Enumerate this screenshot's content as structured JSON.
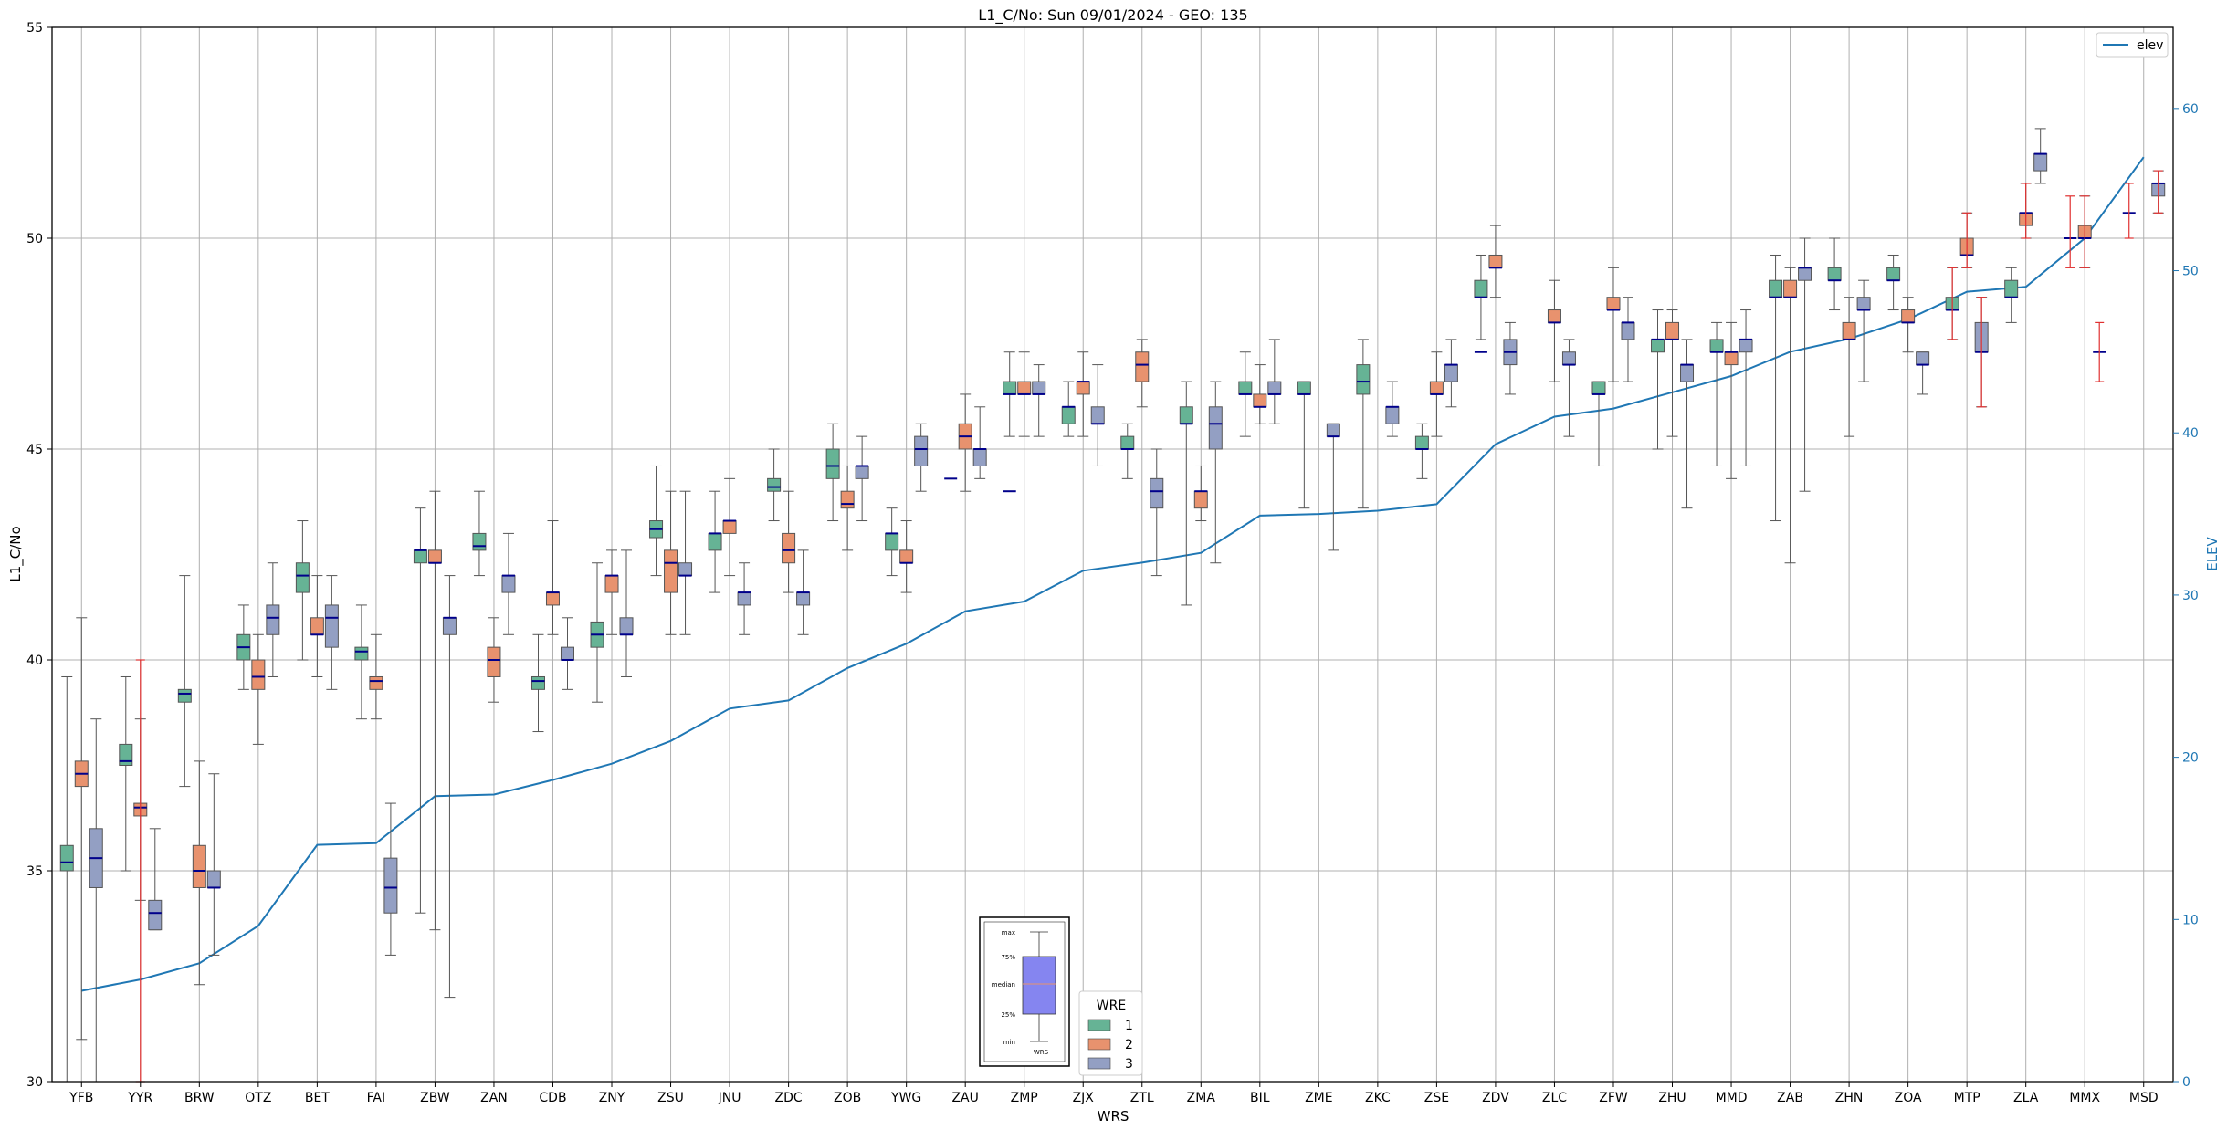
{
  "chart_data": {
    "type": "box",
    "title": "L1_C/No: Sun 09/01/2024 - GEO: 135",
    "xlabel": "WRS",
    "ylabel": "L1_C/No",
    "ylabel_right": "ELEV",
    "ylim": [
      30,
      55
    ],
    "ylim_right": [
      0,
      65
    ],
    "yticks": [
      "30",
      "35",
      "40",
      "45",
      "50",
      "55"
    ],
    "yticks_right": [
      "0",
      "10",
      "20",
      "30",
      "40",
      "50",
      "60"
    ],
    "grid": true,
    "categories": [
      "YFB",
      "YYR",
      "BRW",
      "OTZ",
      "BET",
      "FAI",
      "ZBW",
      "ZAN",
      "CDB",
      "ZNY",
      "ZSU",
      "JNU",
      "ZDC",
      "ZOB",
      "YWG",
      "ZAU",
      "ZMP",
      "ZJX",
      "ZTL",
      "ZMA",
      "BIL",
      "ZME",
      "ZKC",
      "ZSE",
      "ZDV",
      "ZLC",
      "ZFW",
      "ZHU",
      "MMD",
      "ZAB",
      "ZHN",
      "ZOA",
      "MTP",
      "ZLA",
      "MMX",
      "MSD"
    ],
    "legend_title": "WRE",
    "legend_placement": "bottom-center",
    "series": [
      {
        "name": "1",
        "color": "#66b395",
        "boxes": [
          [
            0,
            30.0,
            35.0,
            35.2,
            35.6,
            39.6
          ],
          [
            1,
            35.0,
            37.5,
            37.6,
            38.0,
            39.6
          ],
          [
            2,
            37.0,
            39.0,
            39.2,
            39.3,
            42.0
          ],
          [
            3,
            39.3,
            40.0,
            40.3,
            40.6,
            41.3
          ],
          [
            4,
            40.0,
            41.6,
            42.0,
            42.3,
            43.3
          ],
          [
            5,
            38.6,
            40.0,
            40.2,
            40.3,
            41.3
          ],
          [
            6,
            34.0,
            42.3,
            42.6,
            42.6,
            43.6
          ],
          [
            7,
            42.0,
            42.6,
            42.7,
            43.0,
            44.0
          ],
          [
            8,
            38.3,
            39.3,
            39.5,
            39.6,
            40.6
          ],
          [
            9,
            39.0,
            40.3,
            40.6,
            40.9,
            42.3
          ],
          [
            10,
            42.0,
            42.9,
            43.1,
            43.3,
            44.6
          ],
          [
            11,
            41.6,
            42.6,
            43.0,
            43.0,
            44.0
          ],
          [
            12,
            43.3,
            44.0,
            44.1,
            44.3,
            45.0
          ],
          [
            13,
            43.3,
            44.3,
            44.6,
            45.0,
            45.6
          ],
          [
            14,
            42.0,
            42.6,
            43.0,
            43.0,
            43.6
          ],
          [
            16,
            45.3,
            46.3,
            46.3,
            46.6,
            47.3
          ],
          [
            17,
            45.3,
            45.6,
            46.0,
            46.0,
            46.6
          ],
          [
            18,
            44.3,
            45.0,
            45.0,
            45.3,
            45.6
          ],
          [
            19,
            41.3,
            45.6,
            45.6,
            46.0,
            46.6
          ],
          [
            20,
            45.3,
            46.3,
            46.3,
            46.6,
            47.3
          ],
          [
            21,
            43.6,
            46.3,
            46.3,
            46.6,
            46.6
          ],
          [
            22,
            43.6,
            46.3,
            46.6,
            47.0,
            47.6
          ],
          [
            23,
            44.3,
            45.0,
            45.0,
            45.3,
            45.6
          ],
          [
            24,
            47.6,
            48.6,
            48.6,
            49.0,
            49.6
          ],
          [
            26,
            44.6,
            46.3,
            46.3,
            46.6,
            46.6
          ],
          [
            27,
            45.0,
            47.3,
            47.6,
            47.6,
            48.3
          ],
          [
            28,
            44.6,
            47.3,
            47.3,
            47.6,
            48.0
          ],
          [
            29,
            43.3,
            48.6,
            48.6,
            49.0,
            49.6
          ],
          [
            30,
            48.3,
            49.0,
            49.0,
            49.3,
            50.0
          ],
          [
            31,
            48.3,
            49.0,
            49.0,
            49.3,
            49.6
          ],
          [
            32,
            47.6,
            48.3,
            48.3,
            48.6,
            49.3
          ],
          [
            33,
            48.0,
            48.6,
            48.6,
            49.0,
            49.3
          ]
        ]
      },
      {
        "name": "2",
        "color": "#e8926e",
        "boxes": [
          [
            0,
            31.0,
            37.0,
            37.3,
            37.6,
            41.0
          ],
          [
            1,
            34.3,
            36.3,
            36.5,
            36.6,
            38.6
          ],
          [
            2,
            32.3,
            34.6,
            35.0,
            35.6,
            37.6
          ],
          [
            3,
            38.0,
            39.3,
            39.6,
            40.0,
            40.6
          ],
          [
            4,
            39.6,
            40.6,
            40.6,
            41.0,
            42.0
          ],
          [
            5,
            38.6,
            39.3,
            39.5,
            39.6,
            40.6
          ],
          [
            6,
            33.6,
            42.3,
            42.3,
            42.6,
            44.0
          ],
          [
            7,
            39.0,
            39.6,
            40.0,
            40.3,
            41.0
          ],
          [
            8,
            40.6,
            41.3,
            41.6,
            41.6,
            43.3
          ],
          [
            9,
            40.6,
            41.6,
            42.0,
            42.0,
            42.6
          ],
          [
            10,
            40.6,
            41.6,
            42.3,
            42.6,
            44.0
          ],
          [
            11,
            42.0,
            43.0,
            43.3,
            43.3,
            44.3
          ],
          [
            12,
            41.6,
            42.3,
            42.6,
            43.0,
            44.0
          ],
          [
            13,
            42.6,
            43.6,
            43.7,
            44.0,
            44.6
          ],
          [
            14,
            41.6,
            42.3,
            42.3,
            42.6,
            43.3
          ],
          [
            15,
            44.0,
            45.0,
            45.3,
            45.6,
            46.3
          ],
          [
            16,
            45.3,
            46.3,
            46.3,
            46.6,
            47.3
          ],
          [
            17,
            45.3,
            46.3,
            46.6,
            46.6,
            47.3
          ],
          [
            18,
            46.0,
            46.6,
            47.0,
            47.3,
            47.6
          ],
          [
            19,
            43.3,
            43.6,
            44.0,
            44.0,
            44.6
          ],
          [
            20,
            45.6,
            46.0,
            46.0,
            46.3,
            47.0
          ],
          [
            23,
            45.3,
            46.3,
            46.3,
            46.6,
            47.3
          ],
          [
            24,
            48.6,
            49.3,
            49.3,
            49.6,
            50.3
          ],
          [
            25,
            46.6,
            48.0,
            48.0,
            48.3,
            49.0
          ],
          [
            26,
            46.6,
            48.3,
            48.3,
            48.6,
            49.3
          ],
          [
            27,
            45.3,
            47.6,
            47.6,
            48.0,
            48.3
          ],
          [
            28,
            44.3,
            47.0,
            47.3,
            47.3,
            48.0
          ],
          [
            29,
            42.3,
            48.6,
            48.6,
            49.0,
            49.3
          ],
          [
            30,
            45.3,
            47.6,
            47.6,
            48.0,
            48.6
          ],
          [
            31,
            47.3,
            48.0,
            48.0,
            48.3,
            48.6
          ],
          [
            32,
            49.3,
            49.6,
            49.6,
            50.0,
            50.6
          ],
          [
            33,
            50.0,
            50.3,
            50.6,
            50.6,
            51.3
          ],
          [
            34,
            49.3,
            50.0,
            50.0,
            50.3,
            51.0
          ]
        ]
      },
      {
        "name": "3",
        "color": "#939fc3",
        "boxes": [
          [
            0,
            30.0,
            34.6,
            35.3,
            36.0,
            38.6
          ],
          [
            1,
            33.6,
            33.6,
            34.0,
            34.3,
            36.0
          ],
          [
            2,
            33.0,
            34.6,
            34.6,
            35.0,
            37.3
          ],
          [
            3,
            39.6,
            40.6,
            41.0,
            41.3,
            42.3
          ],
          [
            4,
            39.3,
            40.3,
            41.0,
            41.3,
            42.0
          ],
          [
            5,
            33.0,
            34.0,
            34.6,
            35.3,
            36.6
          ],
          [
            6,
            32.0,
            40.6,
            41.0,
            41.0,
            42.0
          ],
          [
            7,
            40.6,
            41.6,
            42.0,
            42.0,
            43.0
          ],
          [
            8,
            39.3,
            40.0,
            40.0,
            40.3,
            41.0
          ],
          [
            9,
            39.6,
            40.6,
            40.6,
            41.0,
            42.6
          ],
          [
            10,
            40.6,
            42.0,
            42.0,
            42.3,
            44.0
          ],
          [
            11,
            40.6,
            41.3,
            41.6,
            41.6,
            42.3
          ],
          [
            12,
            40.6,
            41.3,
            41.6,
            41.6,
            42.6
          ],
          [
            13,
            43.3,
            44.3,
            44.6,
            44.6,
            45.3
          ],
          [
            14,
            44.0,
            44.6,
            45.0,
            45.3,
            45.6
          ],
          [
            15,
            44.3,
            44.6,
            45.0,
            45.0,
            46.0
          ],
          [
            16,
            45.3,
            46.3,
            46.3,
            46.6,
            47.0
          ],
          [
            17,
            44.6,
            45.6,
            45.6,
            46.0,
            47.0
          ],
          [
            18,
            42.0,
            43.6,
            44.0,
            44.3,
            45.0
          ],
          [
            19,
            42.3,
            45.0,
            45.6,
            46.0,
            46.6
          ],
          [
            20,
            45.6,
            46.3,
            46.3,
            46.6,
            47.6
          ],
          [
            21,
            42.6,
            45.3,
            45.3,
            45.6,
            45.6
          ],
          [
            22,
            45.3,
            45.6,
            46.0,
            46.0,
            46.6
          ],
          [
            23,
            46.0,
            46.6,
            47.0,
            47.0,
            47.6
          ],
          [
            24,
            46.3,
            47.0,
            47.3,
            47.6,
            48.0
          ],
          [
            25,
            45.3,
            47.0,
            47.0,
            47.3,
            47.6
          ],
          [
            26,
            46.6,
            47.6,
            48.0,
            48.0,
            48.6
          ],
          [
            27,
            43.6,
            46.6,
            47.0,
            47.0,
            47.6
          ],
          [
            28,
            44.6,
            47.3,
            47.6,
            47.6,
            48.3
          ],
          [
            29,
            44.0,
            49.0,
            49.3,
            49.3,
            50.0
          ],
          [
            30,
            46.6,
            48.3,
            48.3,
            48.6,
            49.0
          ],
          [
            31,
            46.3,
            47.0,
            47.0,
            47.3,
            47.3
          ],
          [
            32,
            46.0,
            47.3,
            47.3,
            48.0,
            48.6
          ],
          [
            33,
            51.3,
            51.6,
            52.0,
            52.0,
            52.6
          ],
          [
            35,
            50.6,
            51.0,
            51.3,
            51.3,
            51.6
          ]
        ]
      }
    ],
    "medians_only": [
      {
        "series": "1",
        "x": 15,
        "value": 44.3
      },
      {
        "series": "1",
        "x": 16,
        "value": 44.0
      },
      {
        "series": "1",
        "x": 24,
        "value": 47.3
      },
      {
        "series": "1",
        "x": 34,
        "value": 50.0
      },
      {
        "series": "1",
        "x": 35,
        "value": 50.6
      },
      {
        "series": "3",
        "x": 34,
        "value": 47.3
      }
    ],
    "line": {
      "name": "elev",
      "color": "#1f77b4",
      "values": [
        5.6,
        6.3,
        7.3,
        9.6,
        14.6,
        14.7,
        17.6,
        17.7,
        18.6,
        19.6,
        21.0,
        23.0,
        23.5,
        25.5,
        27.0,
        29.0,
        29.6,
        31.5,
        32.0,
        32.6,
        34.9,
        35.0,
        35.2,
        35.6,
        39.3,
        41.0,
        41.5,
        42.5,
        43.5,
        45.0,
        45.8,
        47.0,
        48.7,
        49.0,
        52.0,
        57.0
      ]
    },
    "line_legend_placement": "top-right",
    "inset_legend": {
      "labels": [
        "max",
        "75%",
        "median",
        "25%",
        "min"
      ],
      "xlabel": "WRS"
    }
  }
}
